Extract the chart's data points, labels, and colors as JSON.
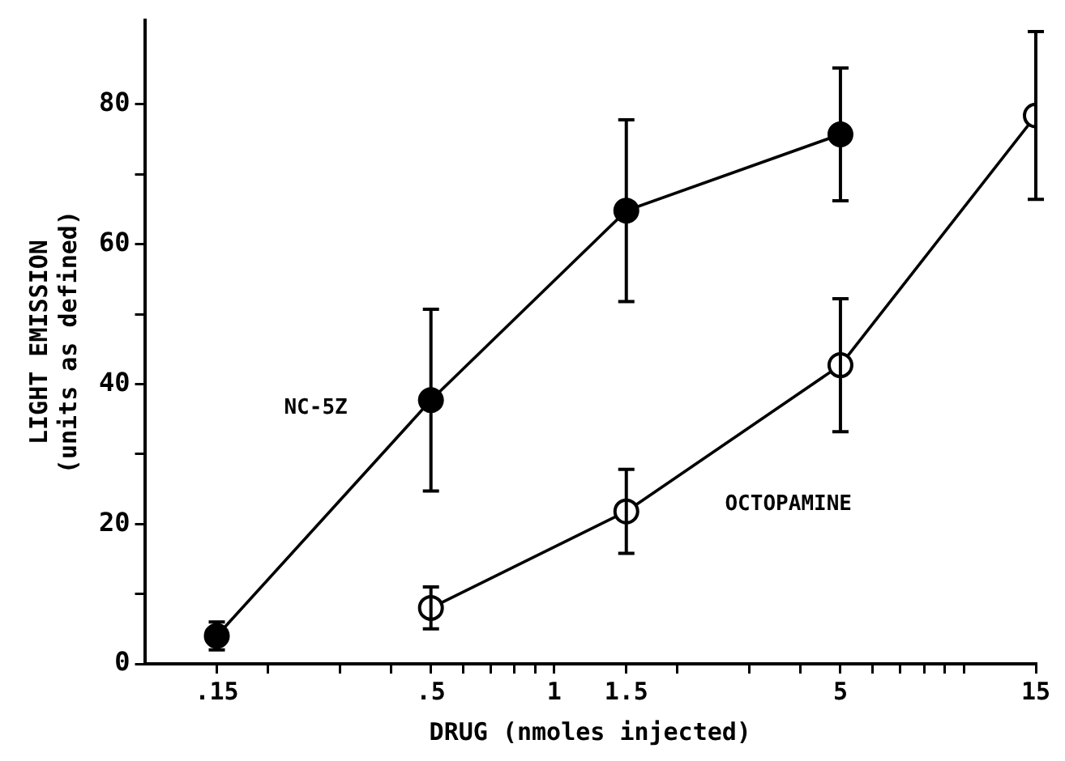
{
  "chart_data": {
    "type": "line",
    "xlabel": "DRUG (nmoles injected)",
    "ylabel": "LIGHT EMISSION\n(units as defined)",
    "log": "x",
    "grid": false,
    "legend": false,
    "marker": "circle",
    "line_style": "solid",
    "xlim": [
      0.1,
      15
    ],
    "xticks": [
      {
        "value": 0.15,
        "label": ".15"
      },
      {
        "value": 0.2,
        "label": null
      },
      {
        "value": 0.3,
        "label": null
      },
      {
        "value": 0.4,
        "label": null
      },
      {
        "value": 0.5,
        "label": ".5"
      },
      {
        "value": 0.6,
        "label": null
      },
      {
        "value": 0.7,
        "label": null
      },
      {
        "value": 0.8,
        "label": null
      },
      {
        "value": 0.9,
        "label": null
      },
      1,
      1.5,
      {
        "value": 2,
        "label": null
      },
      {
        "value": 3,
        "label": null
      },
      {
        "value": 4,
        "label": null
      },
      5,
      {
        "value": 6,
        "label": null
      },
      {
        "value": 7,
        "label": null
      },
      {
        "value": 8,
        "label": null
      },
      {
        "value": 9,
        "label": null
      },
      {
        "value": 10,
        "label": null
      },
      15
    ],
    "ylim": [
      0,
      92
    ],
    "yticks": [
      0,
      {
        "value": 10,
        "label": null
      },
      20,
      {
        "value": 30,
        "label": null
      },
      40,
      {
        "value": 50,
        "label": null
      },
      60,
      {
        "value": 70,
        "label": null
      },
      80
    ],
    "series": [
      {
        "name": "NC-5Z",
        "color": "#000000",
        "x": [
          0.15,
          0.5,
          1.5,
          5
        ],
        "values": [
          4,
          37.7,
          64.8,
          75.7
        ],
        "errors": [
          2,
          13,
          13,
          9.5
        ]
      },
      {
        "name": "OCTOPAMINE",
        "color": "#000000",
        "x": [
          0.5,
          1.5,
          5,
          15
        ],
        "values": [
          8,
          21.8,
          42.7,
          78.4
        ],
        "errors": [
          3,
          6,
          9.5,
          12
        ]
      }
    ]
  }
}
